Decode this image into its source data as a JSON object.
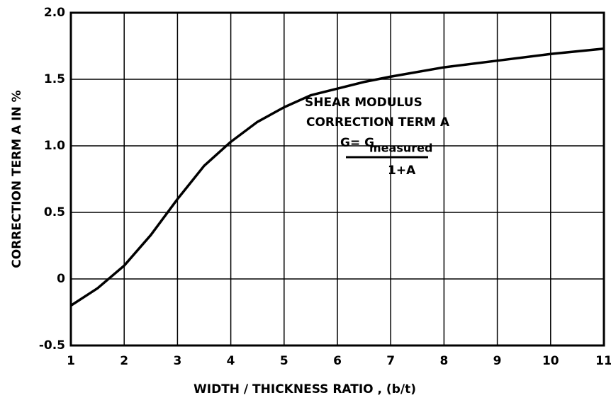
{
  "chart_data": {
    "type": "line",
    "xlabel": "WIDTH / THICKNESS RATIO , (b/t)",
    "ylabel": "CORRECTION TERM A IN %",
    "annotations": [
      "SHEAR MODULUS",
      "CORRECTION TERM A",
      "G= G",
      "measured",
      "1+A"
    ],
    "x": [
      1,
      1.5,
      2,
      2.5,
      3,
      3.5,
      4,
      4.5,
      5,
      5.5,
      6,
      6.5,
      7,
      8,
      9,
      10,
      11
    ],
    "series": [
      {
        "color": "#000000",
        "values": [
          -0.2,
          -0.07,
          0.1,
          0.33,
          0.6,
          0.85,
          1.03,
          1.18,
          1.29,
          1.38,
          1.43,
          1.48,
          1.52,
          1.59,
          1.64,
          1.69,
          1.73
        ]
      }
    ],
    "xlim": [
      1,
      11
    ],
    "xticks": [
      1,
      2,
      3,
      4,
      5,
      6,
      7,
      8,
      9,
      10,
      11
    ],
    "ylim": [
      -0.5,
      2
    ],
    "yticks": [
      -0.5,
      0,
      0.5,
      {
        "value": 1,
        "label": "1.0"
      },
      1.5,
      {
        "value": 2,
        "label": "2.0"
      }
    ],
    "grid": true
  }
}
